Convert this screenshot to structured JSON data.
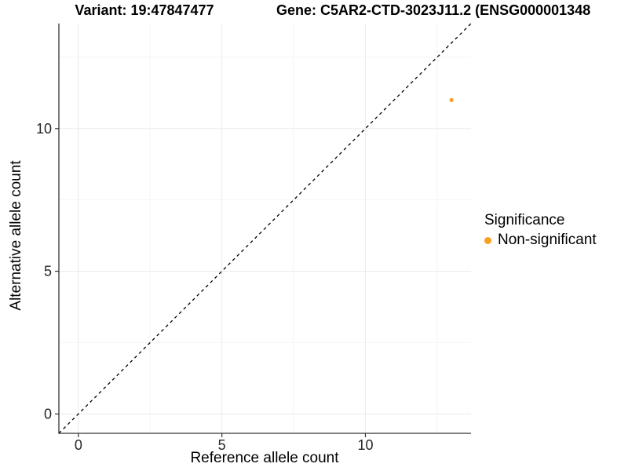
{
  "chart_data": {
    "type": "scatter",
    "title_left": "Variant: 19:47847477",
    "title_right": "Gene: C5AR2-CTD-3023J11.2 (ENSG000001348",
    "xlabel": "Reference allele count",
    "ylabel": "Alternative allele count",
    "xlim": [
      -0.68,
      13.68
    ],
    "ylim": [
      -0.68,
      13.68
    ],
    "x_ticks": [
      0,
      5,
      10
    ],
    "y_ticks": [
      0,
      5,
      10
    ],
    "x_minor_ticks": [
      2.5,
      7.5,
      12.5
    ],
    "y_minor_ticks": [
      2.5,
      7.5,
      12.5
    ],
    "grid": "on",
    "points": [
      {
        "x": 13,
        "y": 11,
        "significance": "Non-significant"
      }
    ],
    "reference_line": {
      "equation": "y = x",
      "style": "dashed",
      "color": "#000000"
    },
    "legend": {
      "title": "Significance",
      "position": "right",
      "items": [
        {
          "label": "Non-significant",
          "color": "#F9A020"
        }
      ]
    },
    "colors": {
      "point": "#F9A020",
      "axis_line": "#333333",
      "tick_label": "#262626",
      "grid_major": "#EBEBEB",
      "grid_minor": "#F5F5F5",
      "background": "#FFFFFF"
    }
  }
}
